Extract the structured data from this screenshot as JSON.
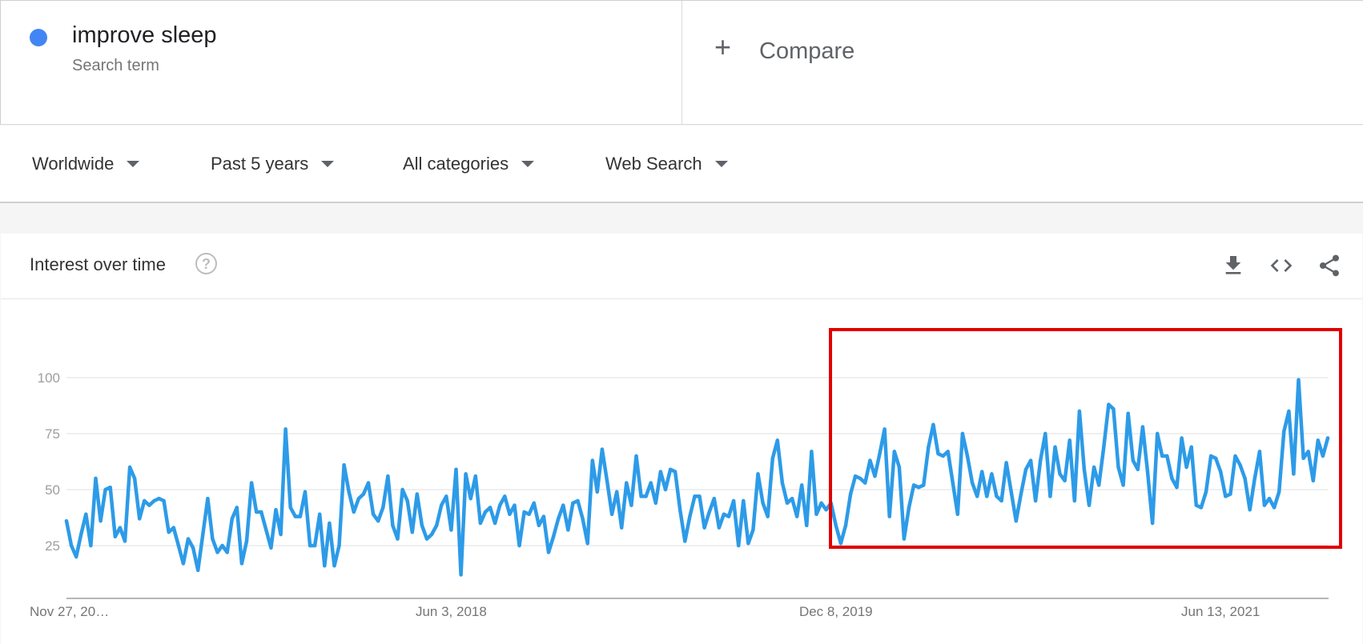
{
  "search_term": {
    "name": "improve sleep",
    "subtitle": "Search term",
    "color": "#4285f4"
  },
  "compare": {
    "icon": "plus-icon",
    "label": "Compare"
  },
  "filters": [
    {
      "label": "Worldwide"
    },
    {
      "label": "Past 5 years"
    },
    {
      "label": "All categories"
    },
    {
      "label": "Web Search"
    }
  ],
  "card": {
    "title": "Interest over time",
    "help_icon": "help-circle-icon",
    "actions": [
      "download-icon",
      "embed-code-icon",
      "share-icon"
    ]
  },
  "highlight_color": "#e00000",
  "chart_data": {
    "type": "line",
    "title": "",
    "xlabel": "",
    "ylabel": "",
    "ylim": [
      0,
      100
    ],
    "y_ticks": [
      25,
      50,
      75,
      100
    ],
    "x_tick_labels": [
      "Nov 27, 20…",
      "Jun 3, 2018",
      "Dec 8, 2019",
      "Jun 13, 2021"
    ],
    "x_tick_index": [
      0,
      79,
      158,
      237
    ],
    "grid": true,
    "line_color": "#2d9be8",
    "series": [
      {
        "values": [
          36,
          25,
          20,
          30,
          39,
          25,
          55,
          36,
          50,
          51,
          29,
          33,
          27,
          60,
          55,
          37,
          45,
          43,
          45,
          46,
          45,
          31,
          33,
          25,
          17,
          28,
          24,
          14,
          30,
          46,
          28,
          22,
          25,
          22,
          37,
          42,
          17,
          27,
          53,
          40,
          40,
          32,
          24,
          41,
          30,
          77,
          42,
          38,
          38,
          49,
          25,
          25,
          39,
          16,
          35,
          16,
          25,
          61,
          49,
          40,
          46,
          48,
          53,
          39,
          36,
          42,
          56,
          34,
          28,
          50,
          45,
          31,
          48,
          34,
          28,
          30,
          34,
          43,
          47,
          32,
          59,
          12,
          57,
          46,
          56,
          35,
          40,
          42,
          35,
          43,
          47,
          39,
          43,
          25,
          40,
          39,
          44,
          34,
          38,
          22,
          29,
          37,
          43,
          32,
          44,
          45,
          37,
          26,
          63,
          49,
          68,
          54,
          39,
          49,
          33,
          53,
          43,
          65,
          47,
          47,
          53,
          44,
          58,
          50,
          59,
          58,
          41,
          27,
          38,
          47,
          47,
          33,
          40,
          46,
          33,
          39,
          38,
          45,
          25,
          45,
          26,
          32,
          57,
          44,
          38,
          64,
          72,
          53,
          44,
          46,
          38,
          52,
          34,
          67,
          39,
          44,
          41,
          44,
          34,
          26,
          34,
          48,
          56,
          55,
          53,
          63,
          56,
          66,
          77,
          38,
          67,
          60,
          28,
          42,
          52,
          51,
          52,
          69,
          79,
          66,
          65,
          67,
          53,
          39,
          75,
          65,
          53,
          47,
          58,
          47,
          57,
          47,
          45,
          62,
          49,
          36,
          48,
          59,
          63,
          45,
          63,
          75,
          47,
          69,
          57,
          54,
          72,
          45,
          85,
          59,
          43,
          60,
          52,
          69,
          88,
          86,
          60,
          52,
          84,
          63,
          59,
          78,
          58,
          35,
          75,
          65,
          65,
          55,
          51,
          73,
          60,
          69,
          43,
          42,
          49,
          65,
          64,
          58,
          47,
          48,
          65,
          61,
          55,
          41,
          55,
          67,
          43,
          46,
          42,
          49,
          76,
          85,
          57,
          99,
          64,
          67,
          54,
          72,
          65,
          73
        ]
      }
    ]
  }
}
